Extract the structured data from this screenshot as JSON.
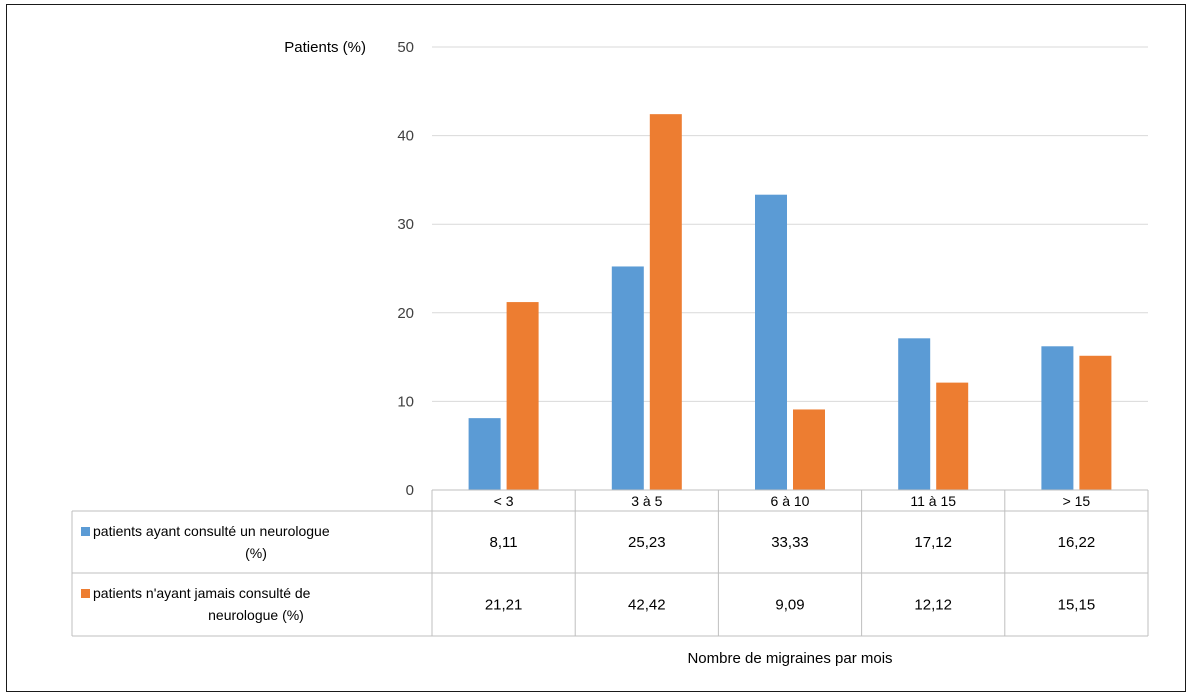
{
  "chart_data": {
    "type": "bar",
    "ylabel": "Patients (%)",
    "xlabel": "Nombre de migraines par mois",
    "ylim": [
      0,
      50
    ],
    "yticks": [
      0,
      10,
      20,
      30,
      40,
      50
    ],
    "grid": true,
    "categories": [
      "< 3",
      "3 à 5",
      "6 à 10",
      "11 à 15",
      "> 15"
    ],
    "series": [
      {
        "name": "patients ayant consulté un neurologue (%)",
        "legend_lines": [
          "patients ayant consulté un neurologue",
          "(%)"
        ],
        "color": "#5B9BD5",
        "values": [
          8.11,
          25.23,
          33.33,
          17.12,
          16.22
        ],
        "labels": [
          "8,11",
          "25,23",
          "33,33",
          "17,12",
          "16,22"
        ]
      },
      {
        "name": "patients n'ayant jamais consulté de neurologue (%)",
        "legend_lines": [
          "patients n'ayant jamais consulté de",
          "neurologue (%)"
        ],
        "color": "#ED7D31",
        "values": [
          21.21,
          42.42,
          9.09,
          12.12,
          15.15
        ],
        "labels": [
          "21,21",
          "42,42",
          "9,09",
          "12,12",
          "15,15"
        ]
      }
    ]
  }
}
